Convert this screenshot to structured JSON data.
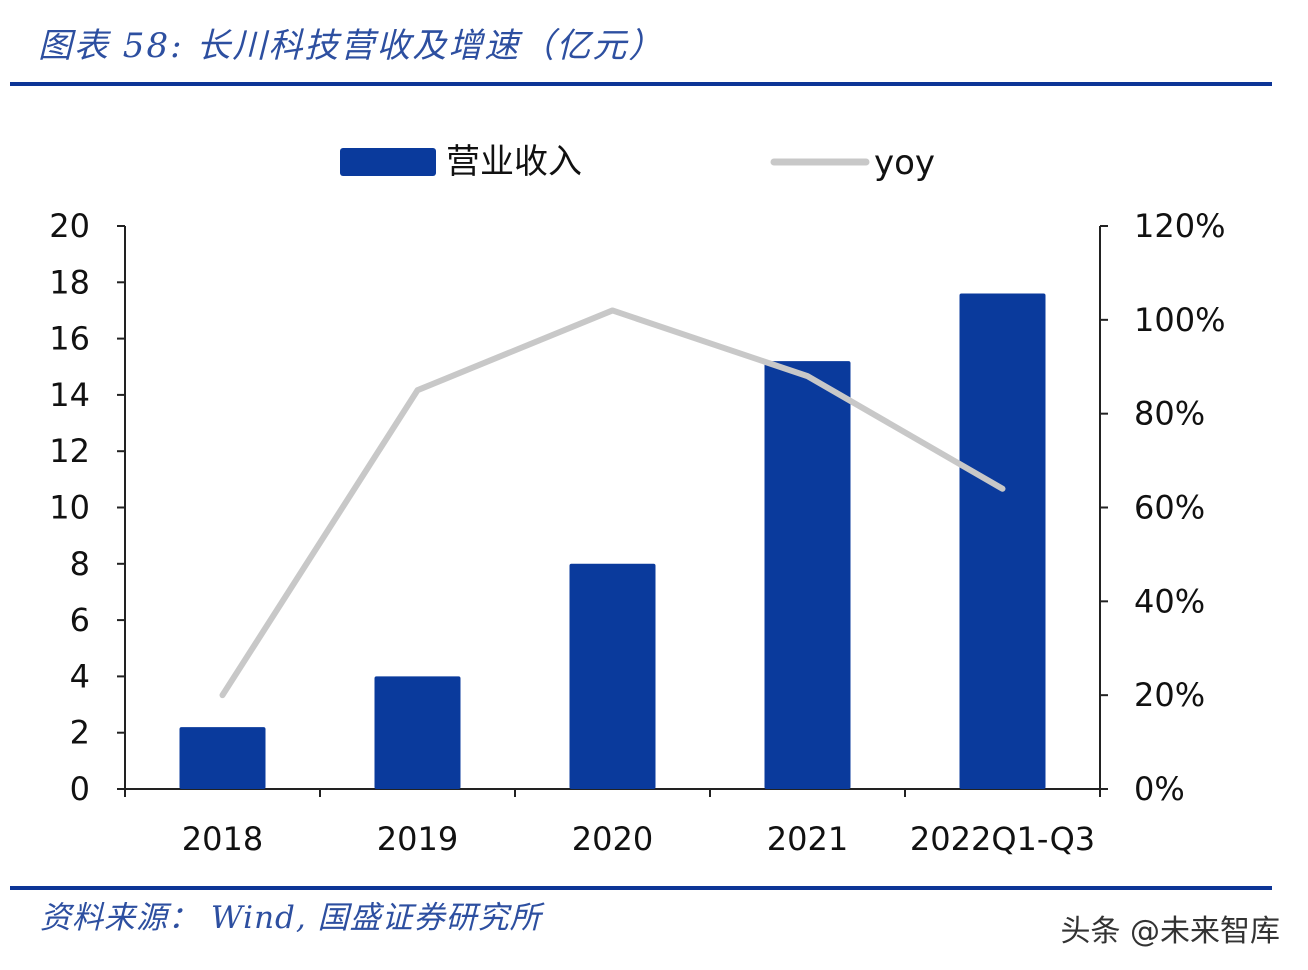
{
  "header": {
    "title": "图表 58:  长川科技营收及增速（亿元）"
  },
  "footer": {
    "source": "资料来源：  Wind,  国盛证券研究所",
    "watermark": "头条 @未来智库"
  },
  "chart_data": {
    "type": "bar",
    "categories": [
      "2018",
      "2019",
      "2020",
      "2021",
      "2022Q1-Q3"
    ],
    "series": [
      {
        "name": "营业收入",
        "type": "bar",
        "axis": "left",
        "color": "#0a3a9c",
        "values": [
          2.2,
          4.0,
          8.0,
          15.2,
          17.6
        ]
      },
      {
        "name": "yoy",
        "type": "line",
        "axis": "right",
        "color": "#c8c8c8",
        "values": [
          20,
          85,
          102,
          88,
          64
        ]
      }
    ],
    "y_left": {
      "ylim": [
        0,
        20
      ],
      "ticks": [
        "0",
        "2",
        "4",
        "6",
        "8",
        "10",
        "12",
        "14",
        "16",
        "18",
        "20"
      ]
    },
    "y_right": {
      "ylim": [
        0,
        120
      ],
      "ticks": [
        "0%",
        "20%",
        "40%",
        "60%",
        "80%",
        "100%",
        "120%"
      ]
    },
    "legend": {
      "position": "top",
      "entries": [
        "营业收入",
        "yoy"
      ]
    },
    "grid": false
  }
}
